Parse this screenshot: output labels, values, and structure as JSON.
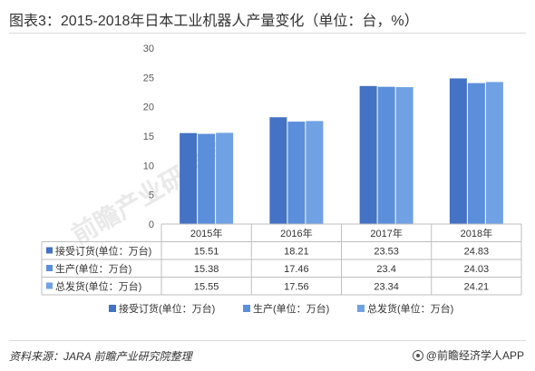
{
  "header": {
    "title": "图表3：2015-2018年日本工业机器人产量变化（单位：台，%）"
  },
  "chart_data": {
    "type": "bar",
    "categories": [
      "2015年",
      "2016年",
      "2017年",
      "2018年"
    ],
    "series": [
      {
        "name": "接受订货(单位：万台)",
        "values": [
          15.51,
          18.21,
          23.53,
          24.83
        ],
        "color": "#4472c4",
        "table_values": [
          "15.51",
          "18.21",
          "23.53",
          "24.83"
        ]
      },
      {
        "name": "生产(单位：万台)",
        "values": [
          15.38,
          17.46,
          23.4,
          24.03
        ],
        "color": "#5b8fdc",
        "table_values": [
          "15.38",
          "17.46",
          "23.4",
          "24.03"
        ]
      },
      {
        "name": "总发货(单位：万台)",
        "values": [
          15.55,
          17.56,
          23.34,
          24.21
        ],
        "color": "#6fa1e4",
        "table_values": [
          "15.55",
          "17.56",
          "23.34",
          "24.21"
        ]
      }
    ],
    "ylim": [
      0,
      30
    ],
    "yticks": [
      "0",
      "5",
      "10",
      "15",
      "20",
      "25",
      "30"
    ],
    "grid": false,
    "legend": "bottom",
    "data_table": true
  },
  "watermark": {
    "text": "前瞻产业研究院"
  },
  "footer": {
    "source": "资料来源：JARA  前瞻产业研究院整理",
    "brand": "@前瞻经济学人APP"
  }
}
